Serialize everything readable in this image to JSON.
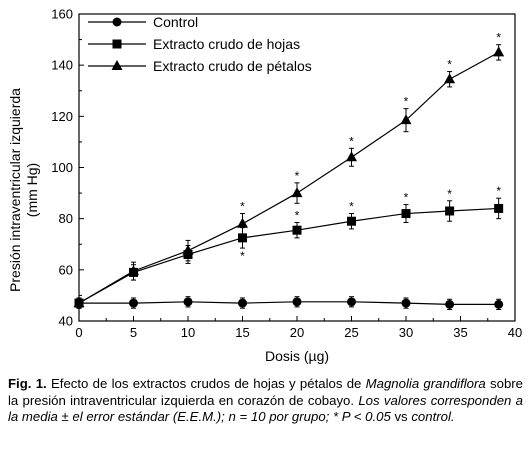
{
  "chart_data": {
    "type": "line",
    "xlabel": "Dosis (µg)",
    "ylabel": "Presión intraventricular izquierda",
    "ylabel_unit": "(mm Hg)",
    "xlim": [
      0,
      40
    ],
    "ylim": [
      40,
      160
    ],
    "xticks": [
      "0",
      "5",
      "10",
      "15",
      "20",
      "25",
      "30",
      "35",
      "40"
    ],
    "yticks": [
      "40",
      "60",
      "80",
      "100",
      "120",
      "140",
      "160"
    ],
    "legend_position": "top-left",
    "grid": false,
    "series": [
      {
        "name": "Control",
        "marker": "circle",
        "x": [
          0,
          5,
          10,
          15,
          20,
          25,
          30,
          34,
          38.5
        ],
        "y": [
          47,
          47,
          47.5,
          47,
          47.5,
          47.5,
          47,
          46.5,
          46.5
        ],
        "err": [
          2,
          2,
          2,
          2,
          2,
          2,
          2,
          2,
          2
        ],
        "sig": [
          false,
          false,
          false,
          false,
          false,
          false,
          false,
          false,
          false
        ]
      },
      {
        "name": "Extracto crudo de hojas",
        "marker": "square",
        "x": [
          0,
          5,
          10,
          15,
          20,
          25,
          30,
          34,
          38.5
        ],
        "y": [
          47,
          59,
          66,
          72.5,
          75.5,
          79,
          82,
          83,
          84
        ],
        "err": [
          2,
          3,
          3.5,
          4,
          3,
          3,
          3.5,
          4,
          4
        ],
        "sig": [
          false,
          false,
          false,
          true,
          true,
          true,
          true,
          true,
          true
        ]
      },
      {
        "name": "Extracto crudo de pétalos",
        "marker": "triangle",
        "x": [
          0,
          5,
          10,
          15,
          20,
          25,
          30,
          34,
          38.5
        ],
        "y": [
          47,
          59.5,
          67.5,
          78,
          90,
          104,
          118.5,
          134.5,
          145
        ],
        "err": [
          2,
          3.5,
          4,
          4,
          4,
          3.5,
          4.5,
          3,
          3
        ],
        "sig": [
          false,
          false,
          false,
          true,
          true,
          true,
          true,
          true,
          true
        ]
      }
    ],
    "significance_marker": "*"
  },
  "caption": {
    "label": "Fig. 1.",
    "text1": " Efecto de los extractos crudos de hojas y pétalos de ",
    "species": "Magnolia grandiflora",
    "text2": " sobre la presión intraventricular izquierda en corazón de cobayo. ",
    "text3": "Los valores corresponden a la media ± el error estándar (E.E.M.); n = 10 por grupo; * P < 0.05",
    "text4": " vs ",
    "text5": "control."
  }
}
